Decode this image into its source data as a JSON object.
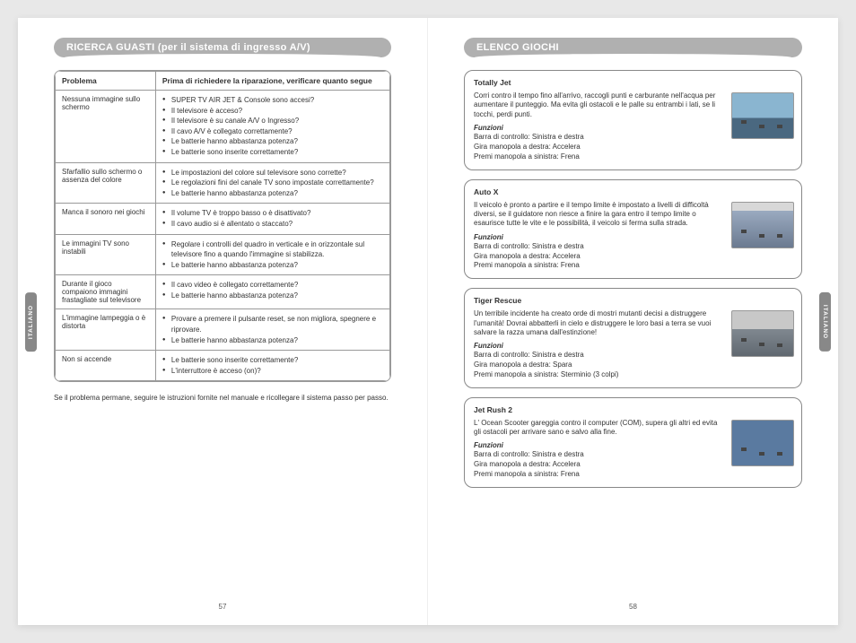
{
  "left": {
    "header": "RICERCA GUASTI",
    "header_paren": "(per il sistema di ingresso A/V)",
    "table": {
      "header_problem": "Problema",
      "header_check": "Prima di richiedere la riparazione, verificare quanto segue",
      "rows": [
        {
          "problem": "Nessuna immagine sullo schermo",
          "checks": [
            "SUPER TV AIR JET & Console sono accesi?",
            "Il televisore è acceso?",
            "Il televisore è su canale A/V o Ingresso?",
            "Il cavo A/V è collegato correttamente?",
            "Le batterie hanno abbastanza potenza?",
            "Le batterie sono inserite correttamente?"
          ]
        },
        {
          "problem": "Sfarfallio sullo schermo o assenza del colore",
          "checks": [
            "Le impostazioni del colore sul televisore sono corrette?",
            "Le regolazioni fini del canale TV sono impostate correttamente?",
            "Le batterie hanno abbastanza potenza?"
          ]
        },
        {
          "problem": "Manca il sonoro nei giochi",
          "checks": [
            "Il volume TV è troppo basso o è disattivato?",
            "Il cavo audio si è allentato o staccato?"
          ]
        },
        {
          "problem": "Le immagini TV sono instabili",
          "checks": [
            "Regolare i controlli del quadro in verticale e in orizzontale sul televisore fino a quando l'immagine si stabilizza.",
            "Le batterie hanno abbastanza potenza?"
          ]
        },
        {
          "problem": "Durante il gioco compaiono immagini frastagliate sul televisore",
          "checks": [
            "Il cavo video è collegato correttamente?",
            "Le batterie hanno abbastanza potenza?"
          ]
        },
        {
          "problem": "L'immagine lampeggia o è distorta",
          "checks": [
            "Provare a premere il pulsante reset, se non migliora, spegnere e riprovare.",
            "Le batterie hanno abbastanza potenza?"
          ]
        },
        {
          "problem": "Non si accende",
          "checks": [
            "Le batterie sono inserite correttamente?",
            "L'interruttore è acceso (on)?"
          ]
        }
      ]
    },
    "footnote": "Se il problema permane, seguire le istruzioni fornite nel manuale e ricollegare il sistema passo per passo.",
    "page_num": "57",
    "tab": "ITALIANO"
  },
  "right": {
    "header": "ELENCO GIOCHI",
    "games": [
      {
        "title": "Totally Jet",
        "desc": "Corri contro il tempo fino all'arrivo, raccogli punti e carburante nell'acqua per aumentare il punteggio. Ma evita gli ostacoli e le palle su entrambi i lati, se li tocchi, perdi punti.",
        "funz_label": "Funzioni",
        "funz": "Barra di controllo: Sinistra e destra\nGira manopola a destra: Accelera\nPremi manopola a sinistra: Frena",
        "thumb": "thumb-totally"
      },
      {
        "title": "Auto X",
        "desc": "Il veicolo è pronto a partire e il tempo limite è impostato a livelli di difficoltà diversi, se il guidatore non riesce a finire la gara entro il tempo limite o esaurisce tutte le vite e le possibilità, il veicolo si ferma sulla strada.",
        "funz_label": "Funzioni",
        "funz": "Barra di controllo: Sinistra e destra\nGira manopola a destra: Accelera\nPremi manopola a sinistra: Frena",
        "thumb": "thumb-autox"
      },
      {
        "title": "Tiger Rescue",
        "desc": "Un terribile incidente ha creato orde di mostri mutanti decisi a distruggere l'umanità! Dovrai abbatterli in cielo e distruggere le loro basi a terra se vuoi salvare la razza umana dall'estinzione!",
        "funz_label": "Funzioni",
        "funz": "Barra di controllo: Sinistra e destra\nGira manopola a destra: Spara\nPremi manopola a sinistra: Sterminio (3 colpi)",
        "thumb": "thumb-tiger"
      },
      {
        "title": "Jet Rush 2",
        "desc": "L' Ocean Scooter gareggia contro il computer (COM), supera gli altri ed evita gli ostacoli per arrivare sano e salvo alla fine.",
        "funz_label": "Funzioni",
        "funz": "Barra di controllo: Sinistra e destra\nGira manopola a destra: Accelera\nPremi manopola a sinistra: Frena",
        "thumb": "thumb-jetrush"
      }
    ],
    "page_num": "58",
    "tab": "ITALIANO"
  }
}
